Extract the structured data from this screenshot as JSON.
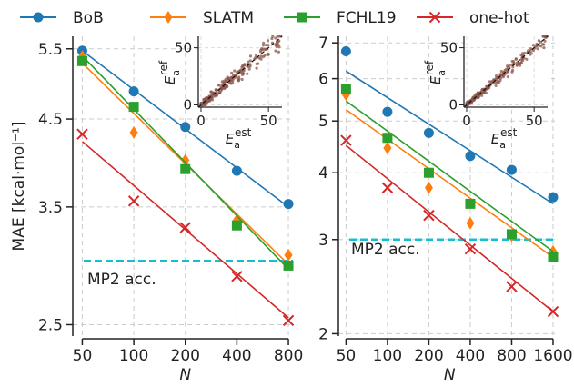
{
  "legend": {
    "placement": "top",
    "items": [
      {
        "name": "BoB",
        "color": "#1f77b4",
        "marker": "circle"
      },
      {
        "name": "SLATM",
        "color": "#ff7f0e",
        "marker": "diamond"
      },
      {
        "name": "FCHL19",
        "color": "#2ca02c",
        "marker": "square"
      },
      {
        "name": "one-hot",
        "color": "#d62728",
        "marker": "x"
      }
    ]
  },
  "chart_data": [
    {
      "type": "scatter",
      "xscale": "log2",
      "yscale": "log",
      "ylabel": "MAE [kcal·mol⁻¹]",
      "xlabel": "N",
      "xticks": [
        50,
        100,
        200,
        400,
        800
      ],
      "yticks": [
        "2.5",
        "3.5",
        "4.5",
        "5.5"
      ],
      "ylim": [
        2.42,
        5.7
      ],
      "xlim": [
        44,
        850
      ],
      "grid": true,
      "reference_line": {
        "label": "MP2 acc.",
        "value": 3.0,
        "color": "#17becf",
        "style": "dashed"
      },
      "series": [
        {
          "name": "BoB",
          "x": [
            50,
            100,
            200,
            400,
            800
          ],
          "y": [
            5.47,
            4.87,
            4.4,
            3.88,
            3.53
          ],
          "fit": [
            5.47,
            3.5
          ]
        },
        {
          "name": "SLATM",
          "x": [
            50,
            100,
            200,
            400,
            800
          ],
          "y": [
            5.38,
            4.33,
            4.0,
            3.37,
            3.05
          ],
          "fit": [
            5.28,
            2.97
          ]
        },
        {
          "name": "FCHL19",
          "x": [
            50,
            100,
            200,
            400,
            800
          ],
          "y": [
            5.31,
            4.66,
            3.9,
            3.32,
            2.96
          ],
          "fit": [
            5.39,
            2.93
          ]
        },
        {
          "name": "one-hot",
          "x": [
            50,
            100,
            200,
            400,
            800
          ],
          "y": [
            4.31,
            3.56,
            3.3,
            2.87,
            2.53
          ],
          "fit": [
            4.22,
            2.55
          ]
        }
      ],
      "inset": {
        "xlabel": "E_a^est",
        "ylabel": "E_a^ref",
        "xticks": [
          0,
          50
        ],
        "yticks": [
          0,
          50
        ]
      }
    },
    {
      "type": "scatter",
      "xscale": "log2",
      "yscale": "log",
      "xlabel": "N",
      "xticks": [
        50,
        100,
        200,
        400,
        800,
        1600
      ],
      "yticks": [
        "2",
        "3",
        "4",
        "5",
        "6",
        "7"
      ],
      "ylim": [
        1.98,
        7.2
      ],
      "xlim": [
        44,
        1650
      ],
      "grid": true,
      "reference_line": {
        "label": "MP2 acc.",
        "value": 3.0,
        "color": "#17becf",
        "style": "dashed"
      },
      "series": [
        {
          "name": "BoB",
          "x": [
            50,
            100,
            200,
            400,
            800,
            1600
          ],
          "y": [
            6.75,
            5.2,
            4.75,
            4.3,
            4.05,
            3.6
          ],
          "fit": [
            6.2,
            3.5
          ]
        },
        {
          "name": "SLATM",
          "x": [
            50,
            100,
            200,
            400,
            800,
            1600
          ],
          "y": [
            5.6,
            4.45,
            3.75,
            3.22,
            3.05,
            2.85
          ],
          "fit": [
            5.25,
            2.78
          ]
        },
        {
          "name": "FCHL19",
          "x": [
            50,
            100,
            200,
            400,
            800,
            1600
          ],
          "y": [
            5.75,
            4.65,
            4.0,
            3.5,
            3.07,
            2.78
          ],
          "fit": [
            5.45,
            2.85
          ]
        },
        {
          "name": "one-hot",
          "x": [
            50,
            100,
            200,
            400,
            800,
            1600
          ],
          "y": [
            4.6,
            3.75,
            3.33,
            2.88,
            2.45,
            2.2
          ],
          "fit": [
            4.5,
            2.2
          ]
        }
      ],
      "inset": {
        "xlabel": "E_a^est",
        "ylabel": "E_a^ref",
        "xticks": [
          0,
          50
        ],
        "yticks": [
          0,
          50
        ]
      }
    }
  ]
}
